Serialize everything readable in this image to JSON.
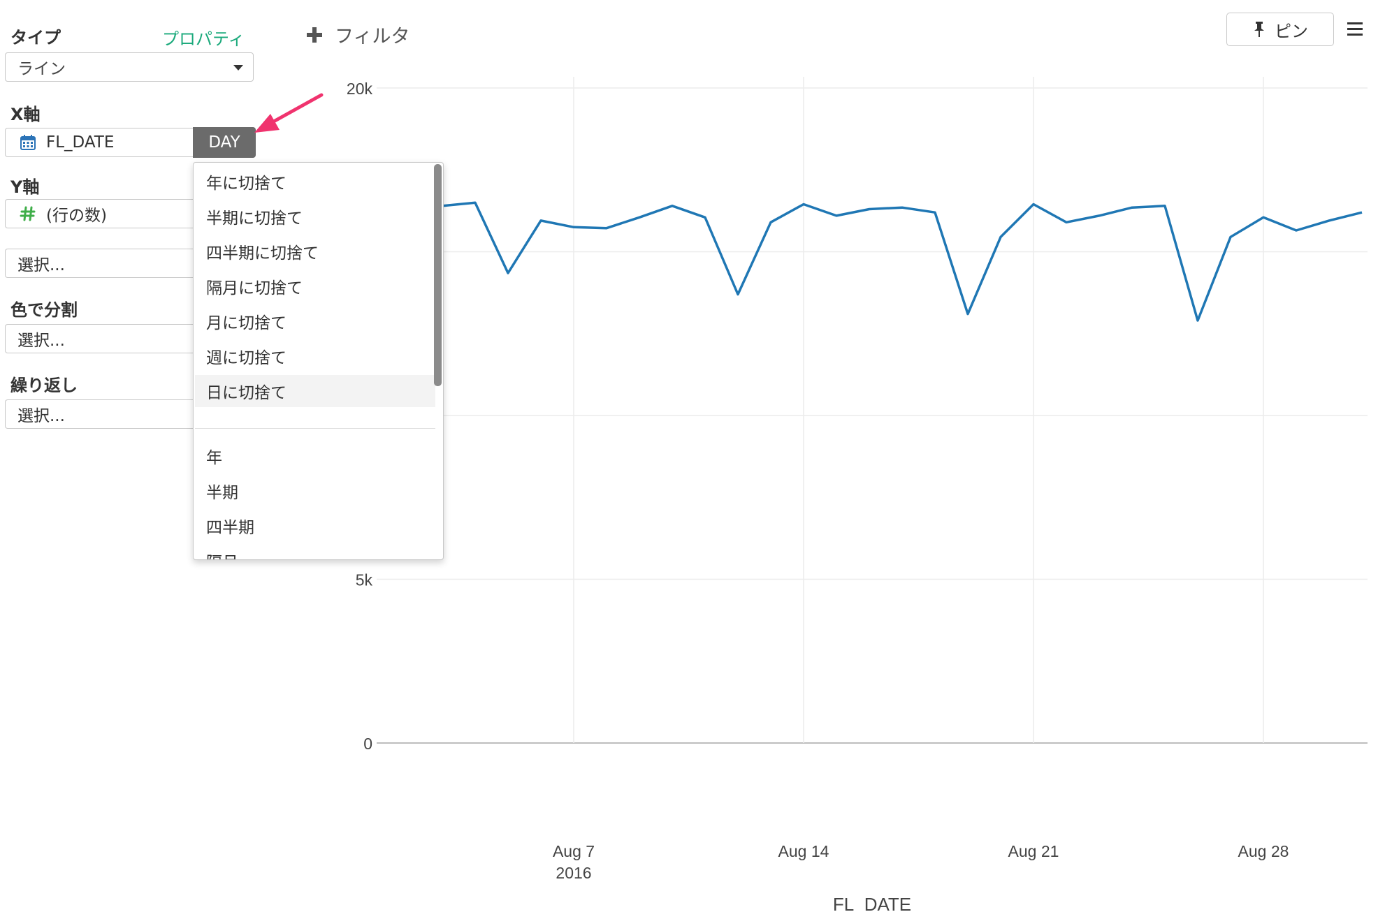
{
  "panel": {
    "type_label": "タイプ",
    "properties_link": "プロパティ",
    "type_value": "ライン",
    "x_axis_label": "X軸",
    "x_field": "FL_DATE",
    "x_granularity": "DAY",
    "y_axis_label": "Y軸",
    "y_field": "(行の数)",
    "y_extra_placeholder": "選択...",
    "color_label": "色で分割",
    "color_placeholder": "選択...",
    "repeat_label": "繰り返し",
    "repeat_placeholder": "選択..."
  },
  "toolbar": {
    "filter_label": "フィルタ",
    "pin_label": "ピン"
  },
  "dropdown": {
    "items": [
      "年に切捨て",
      "半期に切捨て",
      "四半期に切捨て",
      "隔月に切捨て",
      "月に切捨て",
      "週に切捨て",
      "日に切捨て",
      "年",
      "半期",
      "四半期",
      "隔月"
    ],
    "highlighted": "日に切捨て"
  },
  "colors": {
    "accent": "#1aa97b",
    "line": "#1f77b4",
    "arrow": "#f0336e",
    "day_button": "#6b6b6b"
  },
  "chart_data": {
    "type": "line",
    "xlabel": "FL_DATE",
    "ylabel": "",
    "y_ticks": [
      "0",
      "5k",
      "20k"
    ],
    "x_ticks": [
      {
        "label": "Aug 7",
        "sub": "2016"
      },
      {
        "label": "Aug 14",
        "sub": ""
      },
      {
        "label": "Aug 21",
        "sub": ""
      },
      {
        "label": "Aug 28",
        "sub": ""
      }
    ],
    "ylim": [
      0,
      20000
    ],
    "grid": true,
    "series": [
      {
        "x": [
          "2016-08-02",
          "2016-08-03",
          "2016-08-04",
          "2016-08-05",
          "2016-08-06",
          "2016-08-07",
          "2016-08-08",
          "2016-08-09",
          "2016-08-10",
          "2016-08-11",
          "2016-08-12",
          "2016-08-13",
          "2016-08-14",
          "2016-08-15",
          "2016-08-16",
          "2016-08-17",
          "2016-08-18",
          "2016-08-19",
          "2016-08-20",
          "2016-08-21",
          "2016-08-22",
          "2016-08-23",
          "2016-08-24",
          "2016-08-25",
          "2016-08-26",
          "2016-08-27",
          "2016-08-28",
          "2016-08-29",
          "2016-08-30",
          "2016-08-31"
        ],
        "values": [
          16300,
          16400,
          16500,
          14350,
          15950,
          15750,
          15720,
          16050,
          16400,
          16050,
          13700,
          15900,
          16450,
          16100,
          16300,
          16350,
          16200,
          13100,
          15450,
          16450,
          15900,
          16100,
          16350,
          16400,
          12900,
          15450,
          16050,
          15650,
          15950,
          16200
        ]
      }
    ]
  }
}
